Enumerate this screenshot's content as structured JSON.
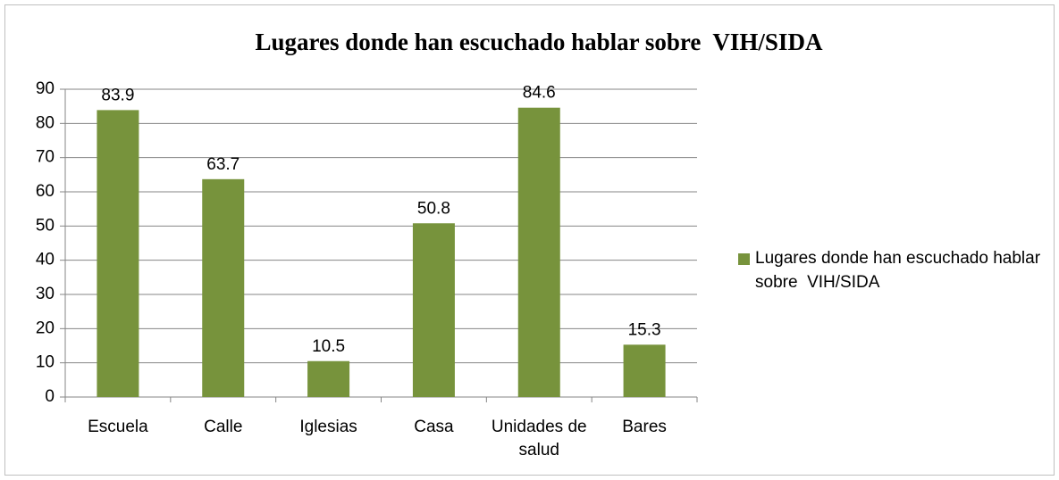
{
  "chart_data": {
    "type": "bar",
    "title": "Lugares donde han escuchado hablar sobre  VIH/SIDA",
    "categories": [
      "Escuela",
      "Calle",
      "Iglesias",
      "Casa",
      "Unidades de salud",
      "Bares"
    ],
    "series": [
      {
        "name": "Lugares donde han escuchado hablar sobre  VIH/SIDA",
        "color": "#77933c",
        "values": [
          83.9,
          63.7,
          10.5,
          50.8,
          84.6,
          15.3
        ]
      }
    ],
    "ylim": [
      0,
      90
    ],
    "yticks": [
      0,
      10,
      20,
      30,
      40,
      50,
      60,
      70,
      80,
      90
    ],
    "grid": true,
    "legend": "right"
  }
}
